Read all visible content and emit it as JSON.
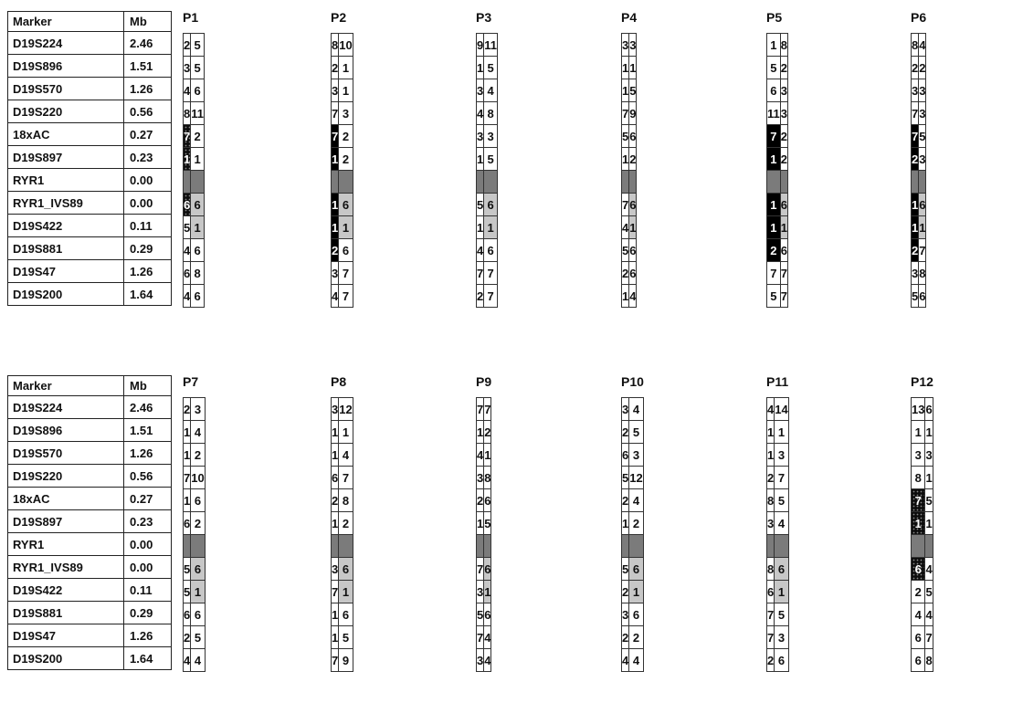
{
  "marker_header": {
    "marker": "Marker",
    "mb": "Mb"
  },
  "markers": [
    {
      "name": "D19S224",
      "mb": "2.46"
    },
    {
      "name": "D19S896",
      "mb": "1.51"
    },
    {
      "name": "D19S570",
      "mb": "1.26"
    },
    {
      "name": "D19S220",
      "mb": "0.56"
    },
    {
      "name": "18xAC",
      "mb": "0.27"
    },
    {
      "name": "D19S897",
      "mb": "0.23"
    },
    {
      "name": "RYR1",
      "mb": "0.00"
    },
    {
      "name": "RYR1_IVS89",
      "mb": "0.00"
    },
    {
      "name": "D19S422",
      "mb": "0.11"
    },
    {
      "name": "D19S881",
      "mb": "0.29"
    },
    {
      "name": "D19S47",
      "mb": "1.26"
    },
    {
      "name": "D19S200",
      "mb": "1.64"
    }
  ],
  "legend_shading": {
    "black": "haplotype cells shaded black",
    "dotted": "haplotype cells shaded black with dot pattern",
    "gray": "RYR1_IVS89 / D19S422 column cells shaded light gray",
    "ryr_row": "RYR1 row shaded dark gray"
  },
  "colors": {
    "black": "#000000",
    "dotted": "#0d0d0d",
    "gray": "#c7c7c7",
    "ryr_row": "#7b7b7b"
  },
  "panels": [
    {
      "label": "P1",
      "cells": [
        [
          "2",
          "5"
        ],
        [
          "3",
          "5"
        ],
        [
          "4",
          "6"
        ],
        [
          "8",
          "11"
        ],
        [
          "7",
          "2"
        ],
        [
          "1",
          "1"
        ],
        [
          "",
          ""
        ],
        [
          "6",
          "6"
        ],
        [
          "5",
          "1"
        ],
        [
          "4",
          "6"
        ],
        [
          "6",
          "8"
        ],
        [
          "4",
          "6"
        ]
      ],
      "shade": [
        [
          "",
          ""
        ],
        [
          "",
          ""
        ],
        [
          "",
          ""
        ],
        [
          "",
          ""
        ],
        [
          "dotted",
          ""
        ],
        [
          "dotted",
          ""
        ],
        [
          "",
          ""
        ],
        [
          "dotted",
          "gray"
        ],
        [
          "",
          "gray"
        ],
        [
          "",
          ""
        ],
        [
          "",
          ""
        ],
        [
          "",
          ""
        ]
      ]
    },
    {
      "label": "P2",
      "cells": [
        [
          "8",
          "10"
        ],
        [
          "2",
          "1"
        ],
        [
          "3",
          "1"
        ],
        [
          "7",
          "3"
        ],
        [
          "7",
          "2"
        ],
        [
          "1",
          "2"
        ],
        [
          "",
          ""
        ],
        [
          "1",
          "6"
        ],
        [
          "1",
          "1"
        ],
        [
          "2",
          "6"
        ],
        [
          "3",
          "7"
        ],
        [
          "4",
          "7"
        ]
      ],
      "shade": [
        [
          "",
          ""
        ],
        [
          "",
          ""
        ],
        [
          "",
          ""
        ],
        [
          "",
          ""
        ],
        [
          "black",
          ""
        ],
        [
          "black",
          ""
        ],
        [
          "",
          ""
        ],
        [
          "black",
          "gray"
        ],
        [
          "black",
          "gray"
        ],
        [
          "black",
          ""
        ],
        [
          "",
          ""
        ],
        [
          "",
          ""
        ]
      ]
    },
    {
      "label": "P3",
      "cells": [
        [
          "9",
          "11"
        ],
        [
          "1",
          "5"
        ],
        [
          "3",
          "4"
        ],
        [
          "4",
          "8"
        ],
        [
          "3",
          "3"
        ],
        [
          "1",
          "5"
        ],
        [
          "",
          ""
        ],
        [
          "5",
          "6"
        ],
        [
          "1",
          "1"
        ],
        [
          "4",
          "6"
        ],
        [
          "7",
          "7"
        ],
        [
          "2",
          "7"
        ]
      ],
      "shade": [
        [
          "",
          ""
        ],
        [
          "",
          ""
        ],
        [
          "",
          ""
        ],
        [
          "",
          ""
        ],
        [
          "",
          ""
        ],
        [
          "",
          ""
        ],
        [
          "",
          ""
        ],
        [
          "",
          "gray"
        ],
        [
          "",
          "gray"
        ],
        [
          "",
          ""
        ],
        [
          "",
          ""
        ],
        [
          "",
          ""
        ]
      ]
    },
    {
      "label": "P4",
      "cells": [
        [
          "3",
          "3"
        ],
        [
          "1",
          "1"
        ],
        [
          "1",
          "5"
        ],
        [
          "7",
          "9"
        ],
        [
          "5",
          "6"
        ],
        [
          "1",
          "2"
        ],
        [
          "",
          ""
        ],
        [
          "7",
          "6"
        ],
        [
          "4",
          "1"
        ],
        [
          "5",
          "6"
        ],
        [
          "2",
          "6"
        ],
        [
          "1",
          "4"
        ]
      ],
      "shade": [
        [
          "",
          ""
        ],
        [
          "",
          ""
        ],
        [
          "",
          ""
        ],
        [
          "",
          ""
        ],
        [
          "",
          ""
        ],
        [
          "",
          ""
        ],
        [
          "",
          ""
        ],
        [
          "",
          "gray"
        ],
        [
          "",
          "gray"
        ],
        [
          "",
          ""
        ],
        [
          "",
          ""
        ],
        [
          "",
          ""
        ]
      ]
    },
    {
      "label": "P5",
      "cells": [
        [
          "1",
          "8"
        ],
        [
          "5",
          "2"
        ],
        [
          "6",
          "3"
        ],
        [
          "11",
          "3"
        ],
        [
          "7",
          "2"
        ],
        [
          "1",
          "2"
        ],
        [
          "",
          ""
        ],
        [
          "1",
          "6"
        ],
        [
          "1",
          "1"
        ],
        [
          "2",
          "6"
        ],
        [
          "7",
          "7"
        ],
        [
          "5",
          "7"
        ]
      ],
      "shade": [
        [
          "",
          ""
        ],
        [
          "",
          ""
        ],
        [
          "",
          ""
        ],
        [
          "",
          ""
        ],
        [
          "black",
          ""
        ],
        [
          "black",
          ""
        ],
        [
          "",
          ""
        ],
        [
          "black",
          "gray"
        ],
        [
          "black",
          "gray"
        ],
        [
          "black",
          ""
        ],
        [
          "",
          ""
        ],
        [
          "",
          ""
        ]
      ]
    },
    {
      "label": "P6",
      "cells": [
        [
          "8",
          "4"
        ],
        [
          "2",
          "2"
        ],
        [
          "3",
          "3"
        ],
        [
          "7",
          "3"
        ],
        [
          "7",
          "5"
        ],
        [
          "2",
          "3"
        ],
        [
          "",
          ""
        ],
        [
          "1",
          "6"
        ],
        [
          "1",
          "1"
        ],
        [
          "2",
          "7"
        ],
        [
          "3",
          "8"
        ],
        [
          "5",
          "6"
        ]
      ],
      "shade": [
        [
          "",
          ""
        ],
        [
          "",
          ""
        ],
        [
          "",
          ""
        ],
        [
          "",
          ""
        ],
        [
          "black",
          ""
        ],
        [
          "black",
          ""
        ],
        [
          "",
          ""
        ],
        [
          "black",
          "gray"
        ],
        [
          "black",
          "gray"
        ],
        [
          "black",
          ""
        ],
        [
          "",
          ""
        ],
        [
          "",
          ""
        ]
      ]
    },
    {
      "label": "P7",
      "cells": [
        [
          "2",
          "3"
        ],
        [
          "1",
          "4"
        ],
        [
          "1",
          "2"
        ],
        [
          "7",
          "10"
        ],
        [
          "1",
          "6"
        ],
        [
          "6",
          "2"
        ],
        [
          "",
          ""
        ],
        [
          "5",
          "6"
        ],
        [
          "5",
          "1"
        ],
        [
          "6",
          "6"
        ],
        [
          "2",
          "5"
        ],
        [
          "4",
          "4"
        ]
      ],
      "shade": [
        [
          "",
          ""
        ],
        [
          "",
          ""
        ],
        [
          "",
          ""
        ],
        [
          "",
          ""
        ],
        [
          "",
          ""
        ],
        [
          "",
          ""
        ],
        [
          "",
          ""
        ],
        [
          "",
          "gray"
        ],
        [
          "",
          "gray"
        ],
        [
          "",
          ""
        ],
        [
          "",
          ""
        ],
        [
          "",
          ""
        ]
      ]
    },
    {
      "label": "P8",
      "cells": [
        [
          "3",
          "12"
        ],
        [
          "1",
          "1"
        ],
        [
          "1",
          "4"
        ],
        [
          "6",
          "7"
        ],
        [
          "2",
          "8"
        ],
        [
          "1",
          "2"
        ],
        [
          "",
          ""
        ],
        [
          "3",
          "6"
        ],
        [
          "7",
          "1"
        ],
        [
          "1",
          "6"
        ],
        [
          "1",
          "5"
        ],
        [
          "7",
          "9"
        ]
      ],
      "shade": [
        [
          "",
          ""
        ],
        [
          "",
          ""
        ],
        [
          "",
          ""
        ],
        [
          "",
          ""
        ],
        [
          "",
          ""
        ],
        [
          "",
          ""
        ],
        [
          "",
          ""
        ],
        [
          "",
          "gray"
        ],
        [
          "",
          "gray"
        ],
        [
          "",
          ""
        ],
        [
          "",
          ""
        ],
        [
          "",
          ""
        ]
      ]
    },
    {
      "label": "P9",
      "cells": [
        [
          "7",
          "7"
        ],
        [
          "1",
          "2"
        ],
        [
          "4",
          "1"
        ],
        [
          "3",
          "8"
        ],
        [
          "2",
          "6"
        ],
        [
          "1",
          "5"
        ],
        [
          "",
          ""
        ],
        [
          "7",
          "6"
        ],
        [
          "3",
          "1"
        ],
        [
          "5",
          "6"
        ],
        [
          "7",
          "4"
        ],
        [
          "3",
          "4"
        ]
      ],
      "shade": [
        [
          "",
          ""
        ],
        [
          "",
          ""
        ],
        [
          "",
          ""
        ],
        [
          "",
          ""
        ],
        [
          "",
          ""
        ],
        [
          "",
          ""
        ],
        [
          "",
          ""
        ],
        [
          "",
          "gray"
        ],
        [
          "",
          "gray"
        ],
        [
          "",
          ""
        ],
        [
          "",
          ""
        ],
        [
          "",
          ""
        ]
      ]
    },
    {
      "label": "P10",
      "cells": [
        [
          "3",
          "4"
        ],
        [
          "2",
          "5"
        ],
        [
          "6",
          "3"
        ],
        [
          "5",
          "12"
        ],
        [
          "2",
          "4"
        ],
        [
          "1",
          "2"
        ],
        [
          "",
          ""
        ],
        [
          "5",
          "6"
        ],
        [
          "2",
          "1"
        ],
        [
          "3",
          "6"
        ],
        [
          "2",
          "2"
        ],
        [
          "4",
          "4"
        ]
      ],
      "shade": [
        [
          "",
          ""
        ],
        [
          "",
          ""
        ],
        [
          "",
          ""
        ],
        [
          "",
          ""
        ],
        [
          "",
          ""
        ],
        [
          "",
          ""
        ],
        [
          "",
          ""
        ],
        [
          "",
          "gray"
        ],
        [
          "",
          "gray"
        ],
        [
          "",
          ""
        ],
        [
          "",
          ""
        ],
        [
          "",
          ""
        ]
      ]
    },
    {
      "label": "P11",
      "cells": [
        [
          "4",
          "14"
        ],
        [
          "1",
          "1"
        ],
        [
          "1",
          "3"
        ],
        [
          "2",
          "7"
        ],
        [
          "8",
          "5"
        ],
        [
          "3",
          "4"
        ],
        [
          "",
          ""
        ],
        [
          "8",
          "6"
        ],
        [
          "6",
          "1"
        ],
        [
          "7",
          "5"
        ],
        [
          "7",
          "3"
        ],
        [
          "2",
          "6"
        ]
      ],
      "shade": [
        [
          "",
          ""
        ],
        [
          "",
          ""
        ],
        [
          "",
          ""
        ],
        [
          "",
          ""
        ],
        [
          "",
          ""
        ],
        [
          "",
          ""
        ],
        [
          "",
          ""
        ],
        [
          "",
          "gray"
        ],
        [
          "",
          "gray"
        ],
        [
          "",
          ""
        ],
        [
          "",
          ""
        ],
        [
          "",
          ""
        ]
      ]
    },
    {
      "label": "P12",
      "cells": [
        [
          "13",
          "6"
        ],
        [
          "1",
          "1"
        ],
        [
          "3",
          "3"
        ],
        [
          "8",
          "1"
        ],
        [
          "7",
          "5"
        ],
        [
          "1",
          "1"
        ],
        [
          "",
          ""
        ],
        [
          "6",
          "4"
        ],
        [
          "2",
          "5"
        ],
        [
          "4",
          "4"
        ],
        [
          "6",
          "7"
        ],
        [
          "6",
          "8"
        ]
      ],
      "shade": [
        [
          "",
          ""
        ],
        [
          "",
          ""
        ],
        [
          "",
          ""
        ],
        [
          "",
          ""
        ],
        [
          "dotted",
          ""
        ],
        [
          "dotted",
          ""
        ],
        [
          "",
          ""
        ],
        [
          "dotted",
          ""
        ],
        [
          "",
          ""
        ],
        [
          "",
          ""
        ],
        [
          "",
          ""
        ],
        [
          "",
          ""
        ]
      ]
    }
  ]
}
